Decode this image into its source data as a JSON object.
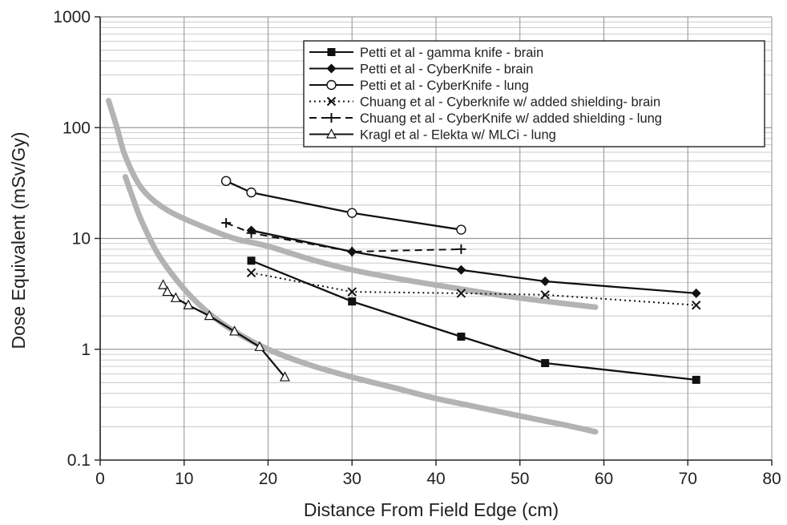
{
  "chart_data": {
    "type": "line",
    "title": "",
    "xlabel": "Distance From Field Edge (cm)",
    "ylabel": "Dose Equivalent (mSv/Gy)",
    "xlim": [
      0,
      80
    ],
    "ylim": [
      0.1,
      1000
    ],
    "yscale": "log",
    "grid": true,
    "legend_position": "top-right",
    "xticks": [
      "0",
      "10",
      "20",
      "30",
      "40",
      "50",
      "60",
      "70",
      "80"
    ],
    "yticks": [
      "0.1",
      "1",
      "10",
      "100",
      "1000"
    ],
    "series": [
      {
        "name": "Petti et al - gamma knife - brain",
        "marker": "square",
        "line": "solid",
        "color": "#111111",
        "x": [
          18,
          30,
          43,
          53,
          71
        ],
        "y": [
          6.3,
          2.7,
          1.3,
          0.75,
          0.53
        ]
      },
      {
        "name": "Petti et al - CyberKnife - brain",
        "marker": "diamond",
        "line": "solid",
        "color": "#111111",
        "x": [
          18,
          30,
          43,
          53,
          71
        ],
        "y": [
          11.8,
          7.6,
          5.2,
          4.1,
          3.2
        ]
      },
      {
        "name": "Petti et al - CyberKnife - lung",
        "marker": "circle-open",
        "line": "solid",
        "color": "#111111",
        "x": [
          15,
          18,
          30,
          43
        ],
        "y": [
          33,
          26,
          17,
          12
        ]
      },
      {
        "name": "Chuang et al - Cyberknife w/ added shielding- brain",
        "marker": "x",
        "line": "dotted",
        "color": "#111111",
        "x": [
          18,
          30,
          43,
          53,
          71
        ],
        "y": [
          4.9,
          3.3,
          3.2,
          3.1,
          2.5
        ]
      },
      {
        "name": "Chuang et al - CyberKnife w/ added shielding - lung",
        "marker": "plus",
        "line": "dashed",
        "color": "#111111",
        "x": [
          15,
          18,
          30,
          43
        ],
        "y": [
          13.8,
          11.2,
          7.6,
          8.0
        ]
      },
      {
        "name": "Kragl et al - Elekta w/ MLCi - lung",
        "marker": "triangle-open",
        "line": "solid",
        "color": "#111111",
        "x": [
          7.5,
          8,
          9,
          10.5,
          13,
          16,
          19,
          22
        ],
        "y": [
          3.8,
          3.3,
          2.9,
          2.5,
          2.0,
          1.45,
          1.05,
          0.56
        ]
      },
      {
        "marker": "none",
        "line": "thick",
        "color": "#b3b3b3",
        "x": [
          1,
          2,
          3,
          5,
          8,
          12,
          16,
          20,
          25,
          30,
          35,
          40,
          45,
          50,
          55,
          59
        ],
        "y": [
          175,
          100,
          55,
          28,
          18,
          13,
          10,
          8.5,
          6.5,
          5.2,
          4.4,
          3.8,
          3.3,
          2.9,
          2.6,
          2.4
        ]
      },
      {
        "marker": "none",
        "line": "thick",
        "color": "#b3b3b3",
        "x": [
          3,
          4,
          5,
          7,
          10,
          13,
          16,
          20,
          25,
          30,
          35,
          40,
          45,
          50,
          55,
          59
        ],
        "y": [
          36,
          22,
          14,
          7.0,
          3.5,
          2.1,
          1.45,
          1.0,
          0.72,
          0.56,
          0.45,
          0.36,
          0.3,
          0.25,
          0.21,
          0.18
        ]
      }
    ]
  }
}
